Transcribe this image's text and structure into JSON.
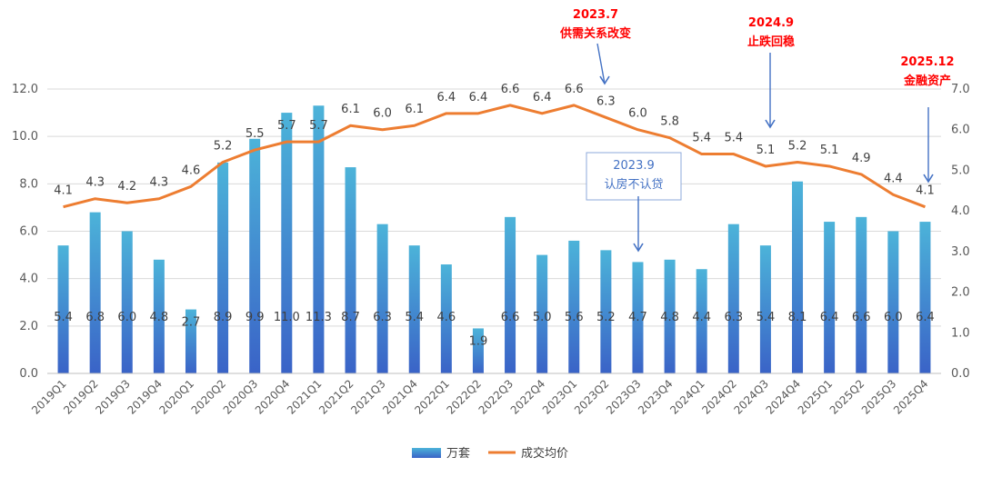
{
  "chart_data": {
    "type": "bar",
    "categories": [
      "2019Q1",
      "2019Q2",
      "2019Q3",
      "2019Q4",
      "2020Q1",
      "2020Q2",
      "2020Q3",
      "2020Q4",
      "2021Q1",
      "2021Q2",
      "2021Q3",
      "2021Q4",
      "2022Q1",
      "2022Q2",
      "2022Q3",
      "2022Q4",
      "2023Q1",
      "2023Q2",
      "2023Q3",
      "2023Q4",
      "2024Q1",
      "2024Q2",
      "2024Q3",
      "2024Q4",
      "2025Q1",
      "2025Q2",
      "2025Q3",
      "2025Q4"
    ],
    "series": [
      {
        "name": "万套",
        "type": "bar",
        "axis": "left",
        "color": "#3d8fd1",
        "values": [
          5.4,
          6.8,
          6.0,
          4.8,
          2.7,
          8.9,
          9.9,
          11.0,
          11.3,
          8.7,
          6.3,
          5.4,
          4.6,
          1.9,
          6.6,
          5.0,
          5.6,
          5.2,
          4.7,
          4.8,
          4.4,
          6.3,
          5.4,
          8.1,
          6.4,
          6.6,
          6.0,
          6.4
        ]
      },
      {
        "name": "成交均价",
        "type": "line",
        "axis": "right",
        "color": "#ed7d31",
        "values": [
          4.1,
          4.3,
          4.2,
          4.3,
          4.6,
          5.2,
          5.5,
          5.7,
          5.7,
          6.1,
          6.0,
          6.1,
          6.4,
          6.4,
          6.6,
          6.4,
          6.6,
          6.3,
          6.0,
          5.8,
          5.4,
          5.4,
          5.1,
          5.2,
          5.1,
          4.9,
          4.4,
          4.1
        ]
      }
    ],
    "left_ticks": [
      "0.0",
      "2.0",
      "4.0",
      "6.0",
      "8.0",
      "10.0",
      "12.0"
    ],
    "right_ticks": [
      "0.0",
      "1.0",
      "2.0",
      "3.0",
      "4.0",
      "5.0",
      "6.0",
      "7.0"
    ],
    "ylim_left": [
      0,
      12
    ],
    "ylim_right": [
      0,
      7
    ],
    "grid": true,
    "legend_position": "bottom",
    "annotations": [
      {
        "id": "a1",
        "style": "red",
        "lines": [
          "2023.7",
          "供需关系改变"
        ],
        "target_category": "2023Q2"
      },
      {
        "id": "a2",
        "style": "red",
        "lines": [
          "2024.9",
          "止跌回稳"
        ],
        "target_category": "2024Q3"
      },
      {
        "id": "a3",
        "style": "red",
        "lines": [
          "2025.12",
          "金融资产"
        ],
        "target_category": "2025Q4"
      },
      {
        "id": "a4",
        "style": "blue-box",
        "lines": [
          "2023.9",
          "认房不认贷"
        ],
        "target_category": "2023Q3"
      }
    ]
  }
}
